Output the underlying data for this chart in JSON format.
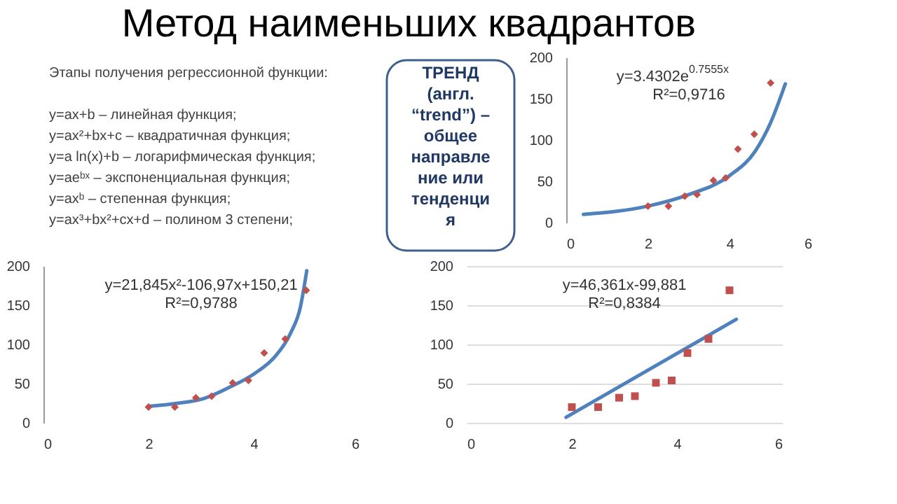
{
  "chart_data": [
    {
      "type": "other",
      "title": "Метод наименьших квадрантов",
      "annotations": [
        "Этапы получения регрессионной функции:",
        "y=ax+b – линейная функция;",
        "y=ax²+bx+c – квадратичная функция;",
        "y=a ln(x)+b – логарифмическая функция;",
        "y=aeᵇˣ – экспоненциальная функция;",
        "y=axᵇ – степенная функция;",
        "y=ax³+bx²+cx+d – полином 3 степени;"
      ]
    },
    {
      "type": "other",
      "annotations": [
        "ТРЕНД",
        "(англ.",
        "“trend”) –",
        "общее",
        "направле",
        "ние или",
        "тенденци",
        "я"
      ]
    },
    {
      "type": "scatter",
      "xlim": [
        0,
        6
      ],
      "xticks": [
        0,
        2,
        4,
        6
      ],
      "ylim": [
        0,
        200
      ],
      "yticks": [
        0,
        50,
        100,
        150,
        200
      ],
      "grid": false,
      "annotations": [
        "y=3.4302e$^{0.7555x}$",
        "R²=0,9716"
      ],
      "series": [
        {
          "type": "scatter",
          "color": "#c0504d",
          "marker": "diamond",
          "x": [
            2,
            2.5,
            2.9,
            3.2,
            3.6,
            3.9,
            4.2,
            4.6,
            5
          ],
          "values": [
            20,
            20,
            32,
            34,
            51,
            54,
            89,
            107,
            169
          ]
        },
        {
          "type": "line",
          "color": "#4f81bd",
          "x": [
            0.42,
            2,
            3,
            4,
            4.63,
            5,
            5.36
          ],
          "values": [
            10,
            20,
            34,
            57,
            87,
            121,
            168
          ]
        }
      ]
    },
    {
      "type": "scatter",
      "xlim": [
        0,
        6
      ],
      "xticks": [
        0,
        2,
        4,
        6
      ],
      "ylim": [
        0,
        200
      ],
      "yticks": [
        0,
        50,
        100,
        150,
        200
      ],
      "grid": false,
      "annotations": [
        "y=21,845x²-106,97x+150,21",
        "R²=0,9788"
      ],
      "series": [
        {
          "type": "scatter",
          "color": "#c0504d",
          "marker": "diamond",
          "x": [
            2,
            2.5,
            2.9,
            3.2,
            3.6,
            3.9,
            4.2,
            4.6,
            5
          ],
          "values": [
            20,
            20,
            32,
            34,
            51,
            54,
            89,
            107,
            169
          ]
        },
        {
          "type": "line",
          "color": "#4f81bd",
          "x": [
            2,
            2.56,
            3.05,
            3.53,
            4.02,
            4.4,
            4.7,
            4.89,
            5.01
          ],
          "values": [
            21,
            25,
            31,
            45,
            63,
            84,
            114,
            148,
            194
          ]
        }
      ]
    },
    {
      "type": "scatter",
      "xlim": [
        0,
        6
      ],
      "xticks": [
        0,
        2,
        4,
        6
      ],
      "ylim": [
        0,
        200
      ],
      "yticks": [
        0,
        50,
        100,
        150,
        200
      ],
      "grid": "y",
      "annotations": [
        "y=46,361x-99,881",
        "R²=0,8384"
      ],
      "series": [
        {
          "type": "scatter",
          "color": "#c0504d",
          "marker": "square",
          "x": [
            2,
            2.5,
            2.9,
            3.2,
            3.6,
            3.9,
            4.2,
            4.6,
            5
          ],
          "values": [
            20,
            20,
            32,
            34,
            51,
            54,
            89,
            107,
            169
          ]
        },
        {
          "type": "line",
          "color": "#4f81bd",
          "x": [
            1.89,
            5.13
          ],
          "values": [
            7,
            132
          ]
        }
      ]
    }
  ]
}
